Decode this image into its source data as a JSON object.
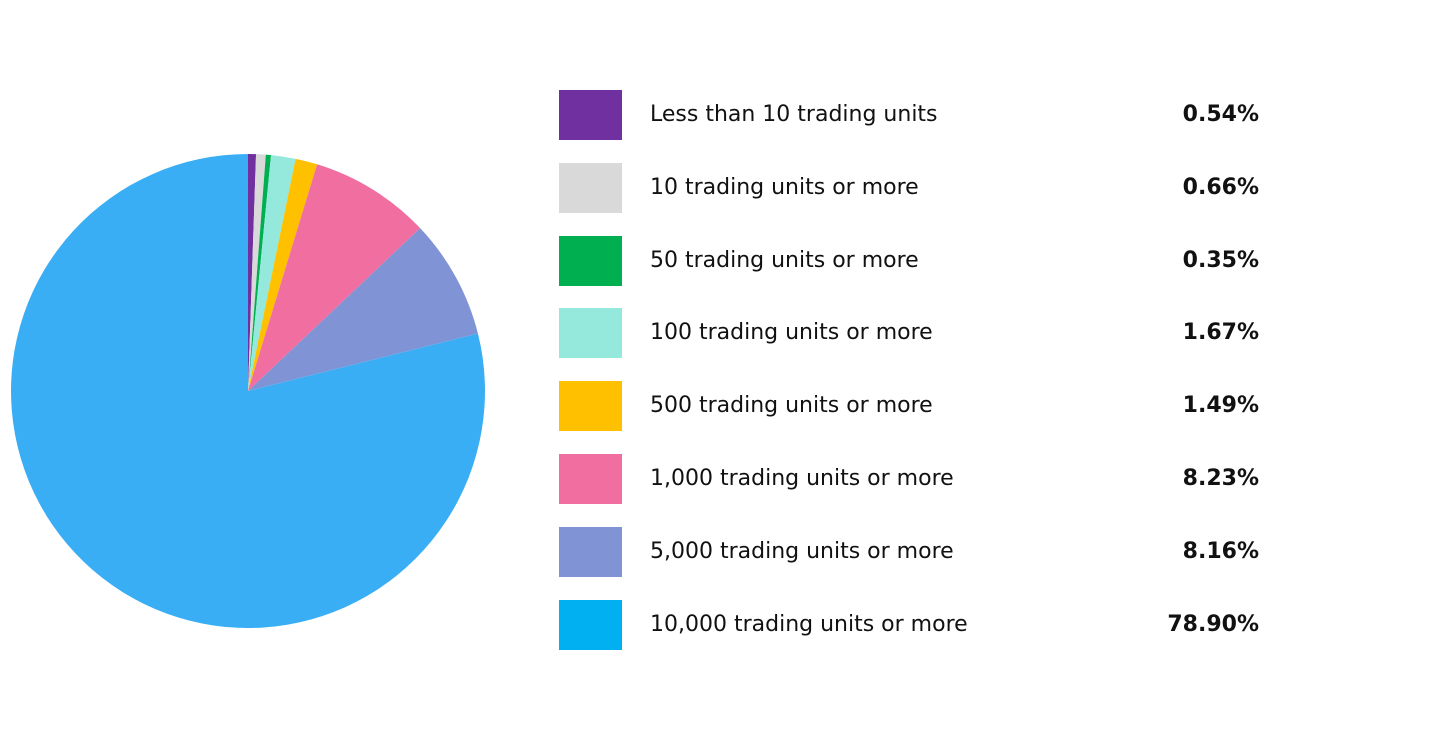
{
  "chart_data": {
    "type": "pie",
    "start_angle": "top",
    "direction": "clockwise",
    "legend_position": "right",
    "slices": [
      {
        "label": "Less than 10 trading units",
        "value": 0.54,
        "display": "0.54%",
        "color": "#7030a0"
      },
      {
        "label": "10 trading units or more",
        "value": 0.66,
        "display": "0.66%",
        "color": "#d9d9d9"
      },
      {
        "label": "50 trading units or more",
        "value": 0.35,
        "display": "0.35%",
        "color": "#00b050"
      },
      {
        "label": "100 trading units or more",
        "value": 1.67,
        "display": "1.67%",
        "color": "#94e9dc"
      },
      {
        "label": "500 trading units or more",
        "value": 1.49,
        "display": "1.49%",
        "color": "#ffc000"
      },
      {
        "label": "1,000 trading units or more",
        "value": 8.23,
        "display": "8.23%",
        "color": "#f06ea0"
      },
      {
        "label": "5,000 trading units or more",
        "value": 8.16,
        "display": "8.16%",
        "color": "#8093d4"
      },
      {
        "label": "10,000 trading units or more",
        "value": 78.9,
        "display": "78.90%",
        "color": "#3aaef5",
        "legend_color": "#00b0f0"
      }
    ]
  }
}
